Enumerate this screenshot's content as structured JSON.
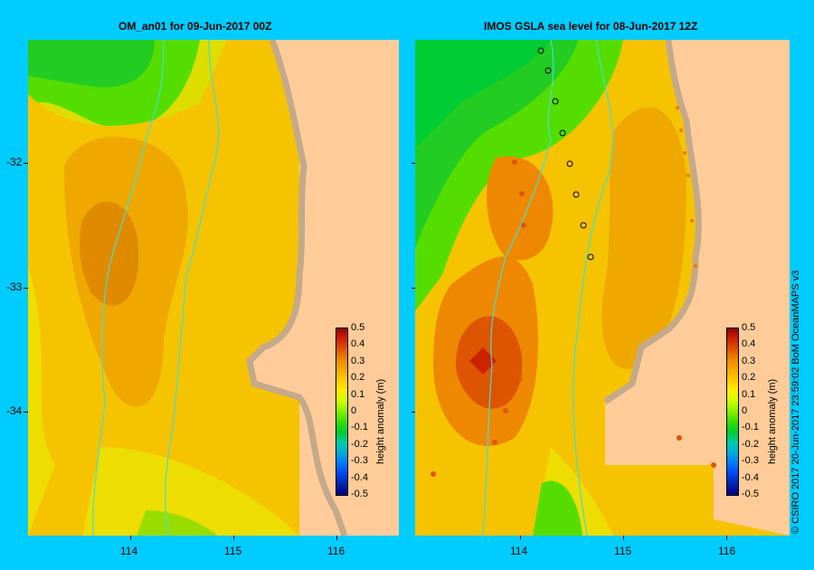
{
  "left_title": "OM_an01  for 09-Jun-2017 00Z",
  "right_title": "IMOS GSLA sea level  for 08-Jun-2017 12Z",
  "credit": "© CSIRO 2017   20-Jun-2017 23:59:02 BoM OceanMAPS v3",
  "lat_ticks": [
    "-32",
    "-33",
    "-34"
  ],
  "lon_ticks": [
    "114",
    "115",
    "116"
  ],
  "colorbar": {
    "label": "height anomaly (m)",
    "ticks": [
      "0.5",
      "0.4",
      "0.3",
      "0.2",
      "0.1",
      "0",
      "-0.1",
      "-0.2",
      "-0.3",
      "-0.4",
      "-0.5"
    ],
    "colors": [
      "#990000",
      "#cc2200",
      "#dd5500",
      "#ee8800",
      "#f5aa00",
      "#ffcc00",
      "#ffee00",
      "#ccff00",
      "#88ee00",
      "#33dd00",
      "#00cc33",
      "#00ccaa",
      "#00aadd",
      "#0077ff",
      "#0044ee",
      "#0022aa",
      "#000088"
    ]
  },
  "colors": {
    "background": "#00ccff",
    "land": "#ffcc99",
    "coast": "#c4a98a",
    "contour": "#40e0d0"
  }
}
